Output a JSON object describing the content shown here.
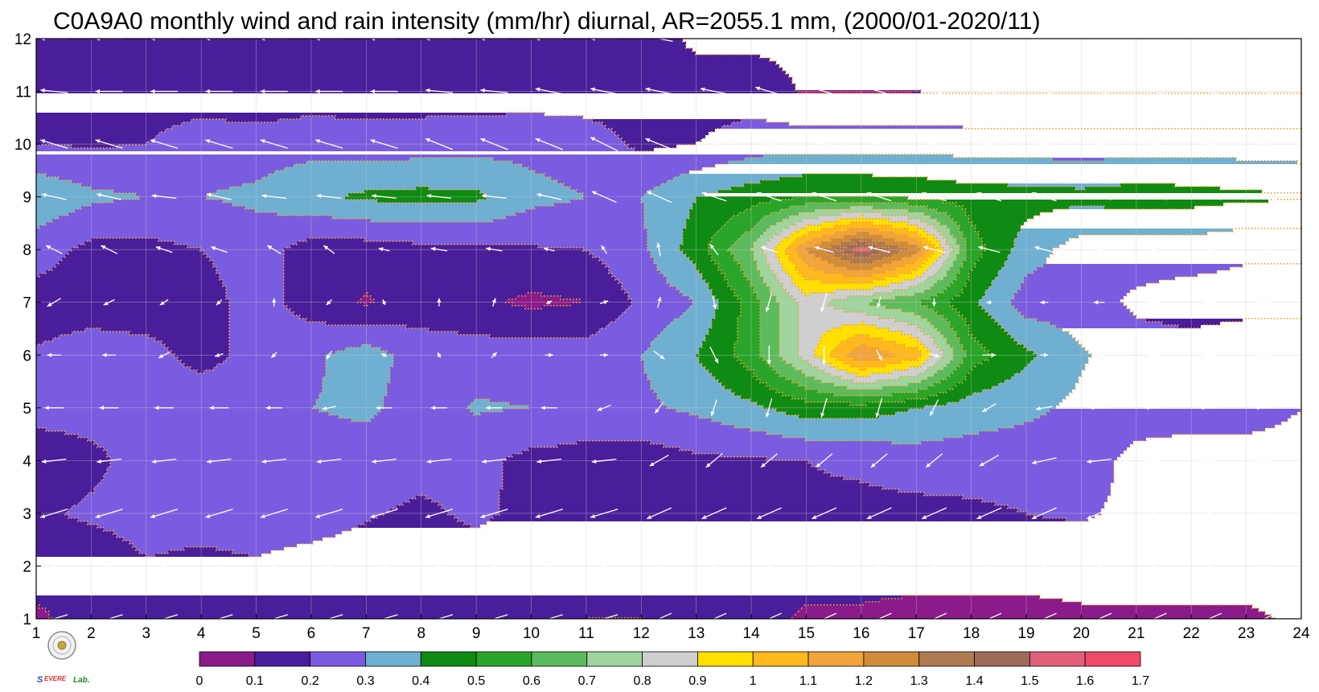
{
  "chart_data": {
    "type": "heatmap",
    "title": "C0A9A0 monthly wind and rain intensity (mm/hr) diurnal, AR=2055.1 mm, (2000/01-2020/11)",
    "x": [
      1,
      2,
      3,
      4,
      5,
      6,
      7,
      8,
      9,
      10,
      11,
      12,
      13,
      14,
      15,
      16,
      17,
      18,
      19,
      20,
      21,
      22,
      23,
      24
    ],
    "y": [
      1,
      2,
      3,
      4,
      5,
      6,
      7,
      8,
      9,
      10,
      11,
      12
    ],
    "xlim": [
      1,
      24
    ],
    "ylim": [
      1,
      12
    ],
    "grid": true,
    "colorbar": {
      "levels": [
        0,
        0.1,
        0.2,
        0.3,
        0.4,
        0.5,
        0.6,
        0.7,
        0.8,
        0.9,
        1,
        1.1,
        1.2,
        1.3,
        1.4,
        1.5,
        1.6,
        1.7
      ],
      "tick_labels": [
        "0",
        "0.1",
        "0.2",
        "0.3",
        "0.4",
        "0.5",
        "0.6",
        "0.7",
        "0.8",
        "0.9",
        "1",
        "1.1",
        "1.2",
        "1.3",
        "1.4",
        "1.5",
        "1.6",
        "1.7"
      ],
      "colors": [
        "#8b1a8b",
        "#4a1e9a",
        "#7a5ce0",
        "#6fb0d2",
        "#0f8a12",
        "#2aa52a",
        "#5cbb5c",
        "#9fd49f",
        "#cfcfcf",
        "#ffe000",
        "#ffb91e",
        "#f0a43a",
        "#d08c3a",
        "#b07a50",
        "#a06a5a",
        "#e0607a",
        "#f04a68",
        "#d82a3a"
      ],
      "placement": "bottom"
    },
    "contour_label": "0.1",
    "rain_intensity_grid": [
      [
        0.08,
        0.15,
        0.15,
        0.15,
        0.15,
        0.15,
        0.15,
        0.15,
        0.15,
        0.15,
        0.1,
        0.1,
        0.15,
        0.15,
        0.08,
        0.08,
        0.06,
        0.06,
        0.06,
        0.08,
        0.08,
        0.08,
        0.08,
        0.12
      ],
      [
        0.15,
        0.12,
        0.19,
        0.17,
        0.19,
        0.16,
        0.15,
        0.15,
        0.15,
        0.15,
        0.15,
        0.15,
        0.15,
        0.15,
        0.15,
        0.15,
        0.15,
        0.15,
        0.15,
        0.15,
        0.15,
        0.15,
        0.15,
        0.15
      ],
      [
        0.18,
        0.22,
        0.25,
        0.25,
        0.25,
        0.25,
        0.21,
        0.18,
        0.22,
        0.17,
        0.17,
        0.15,
        0.15,
        0.18,
        0.18,
        0.17,
        0.17,
        0.18,
        0.2,
        0.21,
        0.18,
        0.17,
        0.2,
        0.15
      ],
      [
        0.12,
        0.17,
        0.25,
        0.25,
        0.25,
        0.25,
        0.25,
        0.24,
        0.23,
        0.17,
        0.17,
        0.15,
        0.18,
        0.19,
        0.2,
        0.22,
        0.25,
        0.25,
        0.25,
        0.25,
        0.17,
        0.15,
        0.15,
        0.16
      ],
      [
        0.25,
        0.25,
        0.25,
        0.3,
        0.25,
        0.3,
        0.32,
        0.25,
        0.31,
        0.3,
        0.25,
        0.28,
        0.32,
        0.38,
        0.45,
        0.45,
        0.4,
        0.35,
        0.32,
        0.28,
        0.25,
        0.25,
        0.25,
        0.2
      ],
      [
        0.21,
        0.25,
        0.25,
        0.15,
        0.25,
        0.28,
        0.35,
        0.25,
        0.25,
        0.25,
        0.25,
        0.3,
        0.4,
        0.55,
        0.85,
        1.2,
        1.05,
        0.55,
        0.42,
        0.31,
        0.25,
        0.25,
        0.3,
        0.3
      ],
      [
        0.15,
        0.15,
        0.12,
        0.15,
        0.25,
        0.15,
        0.09,
        0.15,
        0.12,
        0.08,
        0.1,
        0.22,
        0.3,
        0.55,
        0.85,
        0.7,
        0.6,
        0.42,
        0.25,
        0.25,
        0.18,
        0.15,
        0.15,
        0.15
      ],
      [
        0.25,
        0.17,
        0.17,
        0.2,
        0.25,
        0.15,
        0.15,
        0.17,
        0.18,
        0.19,
        0.2,
        0.28,
        0.45,
        0.7,
        1.2,
        1.55,
        1.25,
        0.55,
        0.35,
        0.25,
        0.25,
        0.25,
        0.22,
        0.22
      ],
      [
        0.38,
        0.32,
        0.3,
        0.3,
        0.32,
        0.38,
        0.42,
        0.43,
        0.42,
        0.33,
        0.3,
        0.3,
        0.4,
        0.45,
        0.5,
        0.5,
        0.48,
        0.45,
        0.44,
        0.43,
        0.45,
        0.44,
        0.42,
        0.41
      ],
      [
        0.2,
        0.19,
        0.2,
        0.25,
        0.25,
        0.26,
        0.24,
        0.25,
        0.26,
        0.27,
        0.25,
        0.18,
        0.2,
        0.25,
        0.26,
        0.26,
        0.26,
        0.25,
        0.25,
        0.24,
        0.25,
        0.25,
        0.25,
        0.24
      ],
      [
        0.12,
        0.15,
        0.15,
        0.15,
        0.12,
        0.15,
        0.15,
        0.15,
        0.15,
        0.15,
        0.15,
        0.15,
        0.15,
        0.15,
        0.09,
        0.09,
        0.1,
        0.09,
        0.09,
        0.09,
        0.09,
        0.09,
        0.09,
        0.09
      ],
      [
        0.15,
        0.15,
        0.15,
        0.15,
        0.15,
        0.15,
        0.15,
        0.15,
        0.15,
        0.15,
        0.15,
        0.15,
        0.08,
        0.08,
        0.08,
        0.08,
        0.08,
        0.08,
        0.08,
        0.08,
        0.08,
        0.08,
        0.08,
        0.08
      ]
    ],
    "wind": {
      "prevailing_direction": "toward west-southwest (northeasterly)",
      "u": [
        [
          -1.0,
          -1.0,
          -1.0,
          -1.0,
          -1.0,
          -1.0,
          -1.0,
          -1.0,
          -1.0,
          -1.0,
          -1.0,
          -0.9,
          -0.9,
          -0.9,
          -0.9,
          -0.9,
          -0.9,
          -0.9,
          -0.9,
          -0.9,
          -0.9,
          -0.9,
          -0.9,
          -0.9
        ],
        [
          -1.0,
          -1.0,
          -1.0,
          -1.0,
          -1.0,
          -1.0,
          -1.0,
          -1.0,
          -1.0,
          -1.0,
          -1.0,
          -0.9,
          -0.9,
          -0.9,
          -0.9,
          -0.9,
          -0.9,
          -0.9,
          -0.9,
          -0.9,
          -0.9,
          -0.9,
          -0.9,
          -0.9
        ],
        [
          -1.0,
          -1.0,
          -1.0,
          -1.0,
          -1.0,
          -1.0,
          -1.0,
          -1.0,
          -1.0,
          -1.0,
          -1.0,
          -0.9,
          -0.9,
          -0.9,
          -0.9,
          -0.9,
          -0.9,
          -0.9,
          -0.9,
          -0.9,
          -0.9,
          -0.9,
          -0.9,
          -0.9
        ],
        [
          -0.9,
          -0.9,
          -0.9,
          -0.9,
          -0.9,
          -0.9,
          -0.9,
          -0.9,
          -0.9,
          -0.9,
          -0.9,
          -0.7,
          -0.6,
          -0.6,
          -0.6,
          -0.6,
          -0.6,
          -0.7,
          -0.9,
          -0.9,
          -0.9,
          -0.9,
          -0.9,
          -0.9
        ],
        [
          -0.7,
          -0.7,
          -0.7,
          -0.7,
          -0.6,
          -0.5,
          -0.6,
          -0.6,
          -0.6,
          -0.6,
          -0.5,
          -0.3,
          -0.2,
          -0.2,
          -0.2,
          -0.2,
          -0.3,
          -0.5,
          -0.6,
          -0.7,
          -0.7,
          -0.7,
          -0.7,
          -0.7
        ],
        [
          -0.5,
          -0.5,
          -0.4,
          -0.3,
          -0.2,
          -0.2,
          -0.2,
          -0.1,
          0.2,
          0.3,
          0.3,
          0.4,
          0.3,
          0.0,
          0.0,
          0.2,
          0.4,
          0.5,
          0.3,
          -0.3,
          -0.5,
          -0.5,
          -0.5,
          -0.5
        ],
        [
          -0.5,
          -0.4,
          -0.3,
          -0.2,
          0.0,
          -0.2,
          -0.1,
          0.0,
          0.1,
          0.2,
          0.3,
          0.1,
          0.1,
          -0.2,
          -0.2,
          -0.1,
          0.0,
          -0.2,
          -0.3,
          -0.4,
          -0.4,
          -0.5,
          -0.5,
          -0.5
        ],
        [
          -0.6,
          -0.6,
          -0.6,
          -0.6,
          -0.5,
          -0.4,
          -0.4,
          -0.6,
          -0.6,
          -0.4,
          -0.2,
          -0.1,
          -0.3,
          -0.6,
          -0.7,
          -0.8,
          -0.8,
          -0.8,
          -0.7,
          -0.6,
          -0.6,
          -0.6,
          -0.6,
          -0.6
        ],
        [
          -0.9,
          -0.9,
          -0.9,
          -0.9,
          -0.9,
          -0.9,
          -0.9,
          -0.9,
          -0.9,
          -0.9,
          -0.9,
          -0.9,
          -0.9,
          -0.9,
          -0.9,
          -0.9,
          -0.9,
          -0.9,
          -0.9,
          -0.9,
          -0.9,
          -0.9,
          -0.9,
          -0.9
        ],
        [
          -1.0,
          -1.0,
          -1.0,
          -1.0,
          -1.0,
          -1.0,
          -1.0,
          -1.0,
          -1.0,
          -1.0,
          -1.0,
          -1.0,
          -1.0,
          -1.0,
          -1.0,
          -1.0,
          -1.0,
          -1.0,
          -1.0,
          -1.0,
          -1.0,
          -1.0,
          -1.0,
          -1.0
        ],
        [
          -1.0,
          -1.0,
          -1.0,
          -1.0,
          -1.0,
          -1.0,
          -1.0,
          -1.0,
          -1.0,
          -1.0,
          -1.0,
          -1.0,
          -1.0,
          -1.0,
          -1.0,
          -1.0,
          -1.0,
          -1.0,
          -1.0,
          -1.0,
          -1.0,
          -1.0,
          -1.0,
          -1.0
        ],
        [
          -1.0,
          -1.0,
          -1.0,
          -1.0,
          -1.0,
          -1.0,
          -1.0,
          -1.0,
          -1.0,
          -1.0,
          -1.0,
          -1.0,
          -1.0,
          -1.0,
          -1.0,
          -1.0,
          -1.0,
          -1.0,
          -1.0,
          -1.0,
          -1.0,
          -1.0,
          -1.0,
          -1.0
        ]
      ],
      "v": [
        [
          -0.3,
          -0.3,
          -0.3,
          -0.3,
          -0.3,
          -0.3,
          -0.3,
          -0.3,
          -0.3,
          -0.3,
          -0.3,
          -0.4,
          -0.4,
          -0.4,
          -0.4,
          -0.4,
          -0.4,
          -0.4,
          -0.4,
          -0.4,
          -0.4,
          -0.4,
          -0.4,
          -0.4
        ],
        [
          -0.3,
          -0.3,
          -0.3,
          -0.3,
          -0.3,
          -0.3,
          -0.3,
          -0.3,
          -0.3,
          -0.3,
          -0.3,
          -0.4,
          -0.4,
          -0.4,
          -0.4,
          -0.4,
          -0.4,
          -0.4,
          -0.4,
          -0.4,
          -0.4,
          -0.4,
          -0.4,
          -0.4
        ],
        [
          -0.3,
          -0.3,
          -0.3,
          -0.3,
          -0.3,
          -0.3,
          -0.3,
          -0.3,
          -0.3,
          -0.3,
          -0.3,
          -0.4,
          -0.4,
          -0.4,
          -0.4,
          -0.4,
          -0.4,
          -0.4,
          -0.4,
          -0.4,
          -0.4,
          -0.4,
          -0.4,
          -0.4
        ],
        [
          -0.1,
          -0.1,
          -0.1,
          -0.1,
          -0.1,
          -0.1,
          -0.1,
          -0.1,
          -0.1,
          -0.1,
          -0.1,
          -0.4,
          -0.5,
          -0.5,
          -0.5,
          -0.5,
          -0.5,
          -0.4,
          -0.2,
          -0.1,
          -0.1,
          -0.1,
          -0.1,
          -0.1
        ],
        [
          0.0,
          0.0,
          0.0,
          0.0,
          0.0,
          -0.1,
          0.0,
          0.0,
          0.0,
          0.0,
          -0.2,
          -0.4,
          -0.6,
          -0.7,
          -0.7,
          -0.7,
          -0.6,
          -0.3,
          -0.1,
          0.0,
          0.0,
          0.0,
          0.0,
          0.0
        ],
        [
          0.0,
          0.0,
          -0.2,
          -0.1,
          -0.2,
          -0.3,
          0.1,
          0.2,
          0.2,
          0.0,
          0.0,
          -0.3,
          -0.6,
          -0.7,
          -0.7,
          -0.4,
          -0.1,
          0.0,
          0.0,
          0.0,
          0.0,
          0.0,
          0.0,
          0.0
        ],
        [
          -0.3,
          -0.2,
          -0.2,
          -0.2,
          0.3,
          -0.2,
          0.2,
          0.3,
          0.3,
          0.1,
          0.1,
          0.4,
          -0.5,
          -0.7,
          -0.7,
          -0.4,
          -0.3,
          0.0,
          0.0,
          0.0,
          0.0,
          0.0,
          0.0,
          0.0
        ],
        [
          0.3,
          0.3,
          0.2,
          0.2,
          0.3,
          0.3,
          0.1,
          0.1,
          0.1,
          0.1,
          0.3,
          0.5,
          0.4,
          0.2,
          0.2,
          0.2,
          0.2,
          0.2,
          0.2,
          0.2,
          0.2,
          0.3,
          0.3,
          0.3
        ],
        [
          0.2,
          0.2,
          0.1,
          0.2,
          0.1,
          0.1,
          0.1,
          0.1,
          0.1,
          0.2,
          0.4,
          0.4,
          0.3,
          0.3,
          0.3,
          0.3,
          0.3,
          0.3,
          0.3,
          0.2,
          0.2,
          0.2,
          0.2,
          0.2
        ],
        [
          0.3,
          0.3,
          0.3,
          0.3,
          0.3,
          0.3,
          0.3,
          0.4,
          0.4,
          0.4,
          0.5,
          0.4,
          0.3,
          0.3,
          0.2,
          0.2,
          0.2,
          0.2,
          0.2,
          0.2,
          0.2,
          0.2,
          0.2,
          0.2
        ],
        [
          0.1,
          0.0,
          0.0,
          0.0,
          0.0,
          0.0,
          0.0,
          0.1,
          0.1,
          0.2,
          0.2,
          0.2,
          0.2,
          0.3,
          0.3,
          0.3,
          0.3,
          0.3,
          0.3,
          0.3,
          0.3,
          0.3,
          0.3,
          0.3
        ],
        [
          0.0,
          0.0,
          0.0,
          0.0,
          0.0,
          0.0,
          0.0,
          0.0,
          0.0,
          0.0,
          0.0,
          0.2,
          0.3,
          0.3,
          0.3,
          0.3,
          0.3,
          0.3,
          0.3,
          0.3,
          0.3,
          0.3,
          0.3,
          0.3
        ]
      ]
    }
  },
  "logo": {
    "icon": "seal-icon",
    "text": "Severe Storm Lab."
  }
}
